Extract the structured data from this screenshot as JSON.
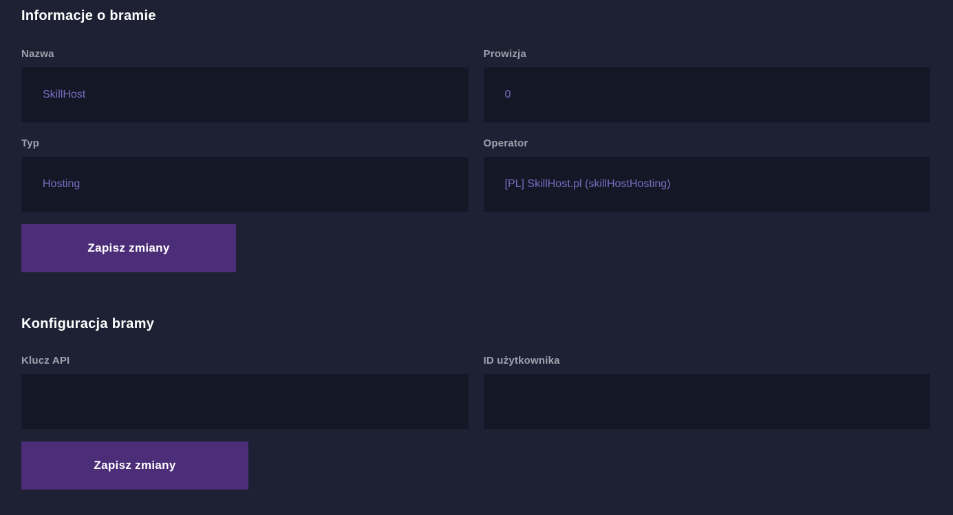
{
  "theme": {
    "page_bg": "#1d2133",
    "input_bg": "#141726",
    "button_bg": "#4c2d78",
    "value_color": "#7a6cc0",
    "label_color": "#9fa2ad",
    "heading_color": "#ffffff"
  },
  "sections": {
    "info": {
      "title": "Informacje o bramie",
      "fields": [
        {
          "label": "Nazwa",
          "value": "SkillHost"
        },
        {
          "label": "Prowizja",
          "value": "0"
        },
        {
          "label": "Typ",
          "value": "Hosting"
        },
        {
          "label": "Operator",
          "value": "[PL] SkillHost.pl (skillHostHosting)"
        }
      ],
      "save_label": "Zapisz zmiany"
    },
    "config": {
      "title": "Konfiguracja bramy",
      "fields": [
        {
          "label": "Klucz API",
          "value": ""
        },
        {
          "label": "ID użytkownika",
          "value": ""
        }
      ],
      "save_label": "Zapisz zmiany"
    }
  }
}
